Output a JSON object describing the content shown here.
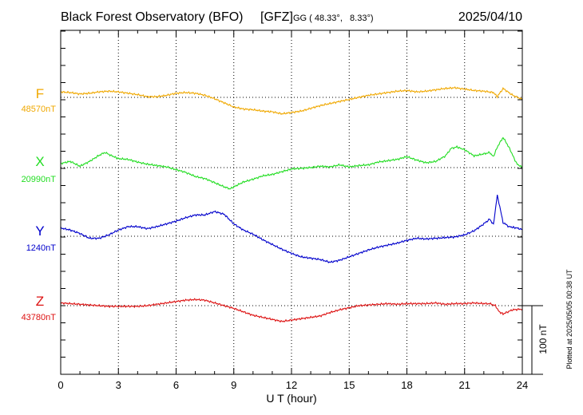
{
  "header": {
    "title": "Black Forest Observatory (BFO)",
    "agency": "[GFZ]",
    "coords": "GG ( 48.33°,   8.33°)",
    "date": "2025/04/10"
  },
  "footer": {
    "plotted": "Plotted at 2025/05/05 00:38 UT"
  },
  "chart_data": {
    "type": "line",
    "xlabel": "U T (hour)",
    "xlim": [
      0,
      24
    ],
    "xticks": [
      0,
      3,
      6,
      9,
      12,
      15,
      18,
      21,
      24
    ],
    "scale_bar": {
      "label": "100 nT",
      "value_nT": 100
    },
    "series": [
      {
        "name": "F",
        "baseline_label": "48570nT",
        "baseline": 48570,
        "color": "#f0a800",
        "x": [
          0,
          0.5,
          1,
          1.5,
          2,
          2.5,
          3,
          3.5,
          4,
          4.5,
          5,
          5.5,
          6,
          6.5,
          7,
          7.5,
          8,
          8.5,
          9,
          9.5,
          10,
          10.5,
          11,
          11.5,
          12,
          12.5,
          13,
          13.5,
          14,
          14.5,
          15,
          15.5,
          16,
          16.5,
          17,
          17.5,
          18,
          18.5,
          19,
          19.5,
          20,
          20.5,
          21,
          21.5,
          22,
          22.5,
          22.7,
          23,
          23.5,
          24
        ],
        "values": [
          8,
          7,
          5,
          6,
          8,
          9,
          8,
          6,
          4,
          1,
          1,
          3,
          6,
          7,
          6,
          3,
          -2,
          -8,
          -14,
          -17,
          -18,
          -20,
          -21,
          -24,
          -22,
          -20,
          -16,
          -12,
          -9,
          -6,
          -3,
          0,
          3,
          5,
          7,
          9,
          10,
          8,
          9,
          11,
          13,
          14,
          12,
          10,
          9,
          7,
          1,
          13,
          3,
          -3
        ]
      },
      {
        "name": "X",
        "baseline_label": "20990nT",
        "baseline": 20990,
        "color": "#22dd22",
        "x": [
          0,
          0.5,
          1,
          1.5,
          2,
          2.3,
          2.6,
          3,
          3.5,
          4,
          4.5,
          5,
          5.5,
          6,
          6.5,
          7,
          7.5,
          8,
          8.5,
          8.8,
          9,
          9.5,
          10,
          10.5,
          11,
          11.5,
          12,
          12.5,
          13,
          13.5,
          14,
          14.5,
          15,
          15.5,
          16,
          16.5,
          17,
          17.5,
          18,
          18.5,
          19,
          19.5,
          20,
          20.3,
          20.6,
          21,
          21.5,
          22,
          22.3,
          22.5,
          22.7,
          23,
          23.3,
          23.7,
          24
        ],
        "values": [
          6,
          9,
          2,
          9,
          18,
          22,
          18,
          13,
          12,
          8,
          5,
          3,
          1,
          -3,
          -7,
          -13,
          -16,
          -22,
          -28,
          -31,
          -28,
          -21,
          -17,
          -12,
          -10,
          -6,
          -2,
          -1,
          0,
          2,
          1,
          4,
          1,
          3,
          4,
          8,
          10,
          12,
          16,
          11,
          7,
          9,
          17,
          28,
          30,
          26,
          17,
          20,
          22,
          16,
          30,
          44,
          30,
          6,
          0
        ]
      },
      {
        "name": "Y",
        "baseline_label": "1240nT",
        "baseline": 1240,
        "color": "#0000cc",
        "x": [
          0,
          0.5,
          1,
          1.5,
          2,
          2.5,
          3,
          3.5,
          4,
          4.5,
          5,
          5.5,
          6,
          6.5,
          7,
          7.5,
          8,
          8.5,
          9,
          9.5,
          10,
          10.5,
          11,
          11.5,
          12,
          12.5,
          13,
          13.5,
          14,
          14.5,
          15,
          15.5,
          16,
          16.5,
          17,
          17.5,
          18,
          18.5,
          19,
          19.5,
          20,
          20.5,
          21,
          21.5,
          22,
          22.3,
          22.5,
          22.7,
          23,
          23.3,
          23.7,
          24
        ],
        "values": [
          12,
          9,
          4,
          -3,
          -3,
          2,
          9,
          14,
          14,
          11,
          14,
          18,
          22,
          27,
          31,
          31,
          36,
          32,
          18,
          9,
          3,
          -5,
          -12,
          -19,
          -25,
          -30,
          -32,
          -34,
          -38,
          -35,
          -30,
          -25,
          -20,
          -16,
          -13,
          -10,
          -6,
          -3,
          -4,
          -3,
          -2,
          -1,
          2,
          8,
          18,
          25,
          17,
          60,
          20,
          14,
          12,
          10
        ]
      },
      {
        "name": "Z",
        "baseline_label": "43780nT",
        "baseline": 43780,
        "color": "#dd1111",
        "x": [
          0,
          0.5,
          1,
          1.5,
          2,
          2.5,
          3,
          3.5,
          4,
          4.5,
          5,
          5.5,
          6,
          6.5,
          7,
          7.5,
          8,
          8.5,
          9,
          9.5,
          10,
          10.5,
          11,
          11.5,
          12,
          12.5,
          13,
          13.5,
          14,
          14.5,
          15,
          15.5,
          16,
          16.5,
          17,
          17.5,
          18,
          18.5,
          19,
          19.5,
          20,
          20.5,
          21,
          21.5,
          22,
          22.3,
          22.6,
          22.8,
          23,
          23.5,
          24
        ],
        "values": [
          4,
          3,
          2,
          1,
          0,
          -1,
          -1,
          -1,
          -1,
          0,
          2,
          4,
          6,
          8,
          9,
          8,
          4,
          0,
          -4,
          -9,
          -14,
          -17,
          -20,
          -23,
          -21,
          -19,
          -17,
          -15,
          -10,
          -6,
          -3,
          0,
          1,
          2,
          3,
          2,
          3,
          3,
          3,
          4,
          2,
          3,
          3,
          4,
          3,
          3,
          0,
          -9,
          -12,
          -6,
          -5
        ]
      }
    ]
  }
}
